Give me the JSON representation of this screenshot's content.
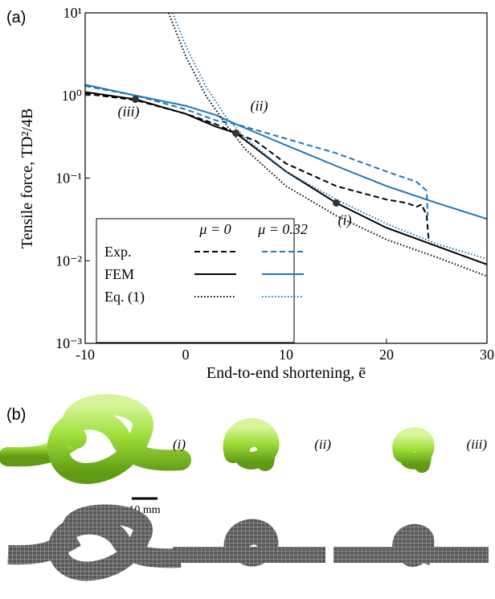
{
  "chart_data": {
    "type": "line",
    "panel_label": "(a)",
    "x_label": "End-to-end shortening, ē",
    "y_label": "Tensile force, TD²/4B",
    "log_y": true,
    "xlim": [
      -10,
      30
    ],
    "xticks": [
      -10,
      0,
      10,
      20,
      30
    ],
    "ylim": [
      0.001,
      10
    ],
    "yticks": [
      {
        "value": 0.001,
        "label": "10⁻³"
      },
      {
        "value": 0.01,
        "label": "10⁻²"
      },
      {
        "value": 0.1,
        "label": "10⁻¹"
      },
      {
        "value": 1,
        "label": "10⁰"
      },
      {
        "value": 10,
        "label": "10¹"
      }
    ],
    "legend": {
      "columns": [
        "μ = 0",
        "μ = 0.32"
      ],
      "rows": [
        "Exp.",
        "FEM",
        "Eq. (1)"
      ]
    },
    "series": [
      {
        "row": 0,
        "column": 0,
        "color": "#000000",
        "dash": "dashed",
        "x": [
          -10,
          -5,
          0,
          3,
          5,
          7,
          10,
          15,
          20,
          22,
          23,
          23.5,
          24,
          24.2
        ],
        "values": [
          1.05,
          0.88,
          0.6,
          0.45,
          0.35,
          0.28,
          0.15,
          0.08,
          0.055,
          0.05,
          0.045,
          0.048,
          0.035,
          0.018
        ]
      },
      {
        "row": 0,
        "column": 1,
        "color": "#1f77b4",
        "dash": "dashed",
        "x": [
          -10,
          -5,
          0,
          3,
          5,
          10,
          15,
          20,
          23,
          24,
          24.1
        ],
        "values": [
          1.3,
          1.0,
          0.68,
          0.5,
          0.45,
          0.3,
          0.2,
          0.12,
          0.09,
          0.07,
          0.035
        ]
      },
      {
        "row": 1,
        "column": 0,
        "color": "#000000",
        "dash": "solid",
        "x": [
          -10,
          -5,
          0,
          3,
          5,
          10,
          15,
          20,
          25,
          30
        ],
        "values": [
          1.1,
          0.9,
          0.6,
          0.42,
          0.35,
          0.12,
          0.05,
          0.025,
          0.015,
          0.009
        ]
      },
      {
        "row": 1,
        "column": 1,
        "color": "#1f77b4",
        "dash": "solid",
        "x": [
          -10,
          -5,
          0,
          3,
          5,
          10,
          15,
          20,
          25,
          30
        ],
        "values": [
          1.35,
          1.0,
          0.75,
          0.58,
          0.45,
          0.25,
          0.14,
          0.08,
          0.05,
          0.032
        ]
      },
      {
        "row": 2,
        "column": 0,
        "color": "#000000",
        "dash": "dotted",
        "x": [
          -1.7,
          0,
          2,
          4,
          6,
          10,
          15,
          20,
          25,
          30
        ],
        "values": [
          10,
          3,
          1.0,
          0.45,
          0.22,
          0.08,
          0.035,
          0.018,
          0.011,
          0.0065
        ]
      },
      {
        "row": 2,
        "column": 1,
        "color": "#1f77b4",
        "dash": "dotted",
        "x": [
          -1.3,
          0,
          2,
          4,
          6,
          10,
          15,
          20,
          25,
          30
        ],
        "values": [
          10,
          4,
          1.3,
          0.55,
          0.3,
          0.12,
          0.055,
          0.028,
          0.016,
          0.0105
        ]
      }
    ],
    "annotations": [
      {
        "text": "(iii)",
        "x": -5,
        "y": 0.9
      },
      {
        "text": "(ii)",
        "x": 5,
        "y": 0.35
      },
      {
        "text": "(i)",
        "x": 15,
        "y": 0.05
      }
    ]
  },
  "panel_b": {
    "label": "(b)",
    "images": [
      {
        "label": "(i)"
      },
      {
        "label": "(ii)"
      },
      {
        "label": "(iii)"
      }
    ],
    "scale_bar": "10 mm"
  }
}
